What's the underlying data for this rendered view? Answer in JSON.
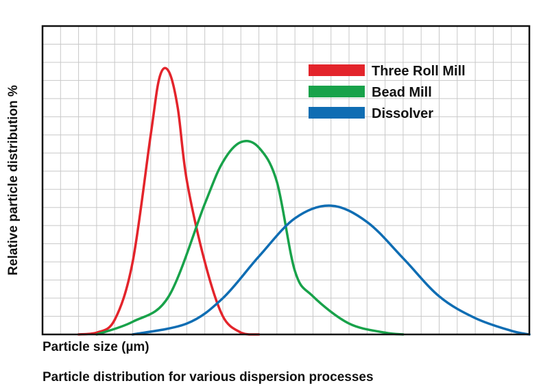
{
  "chart_data": {
    "type": "line",
    "title": "",
    "caption": "Particle distribution for various dispersion processes",
    "xlabel": "Particle size (µm)",
    "ylabel": "Relative particle distribution %",
    "xlim": [
      0,
      27
    ],
    "ylim": [
      0,
      17
    ],
    "grid": true,
    "legend_position": "top-right",
    "series": [
      {
        "name": "Three Roll Mill",
        "color": "#e3242b",
        "x": [
          2,
          3,
          4,
          5,
          6,
          6.5,
          7,
          7.5,
          8,
          9,
          10,
          11,
          11.5,
          12
        ],
        "y": [
          0,
          0.1,
          0.8,
          4,
          11,
          14.2,
          14.5,
          12.5,
          8.5,
          4,
          1,
          0.1,
          0,
          0
        ]
      },
      {
        "name": "Bead Mill",
        "color": "#18a24a",
        "x": [
          3,
          5,
          7,
          9,
          10,
          11,
          12,
          13,
          14,
          15,
          17,
          19,
          20
        ],
        "y": [
          0,
          0.7,
          2.1,
          7.2,
          9.5,
          10.6,
          10.3,
          8.4,
          3.5,
          2.1,
          0.6,
          0.1,
          0
        ]
      },
      {
        "name": "Dissolver",
        "color": "#0f6db3",
        "x": [
          5,
          8,
          10,
          12,
          14,
          16,
          18,
          20,
          22,
          24,
          26,
          27
        ],
        "y": [
          0,
          0.6,
          2,
          4.3,
          6.4,
          7.1,
          6.2,
          4.2,
          2.1,
          0.9,
          0.2,
          0
        ]
      }
    ]
  }
}
